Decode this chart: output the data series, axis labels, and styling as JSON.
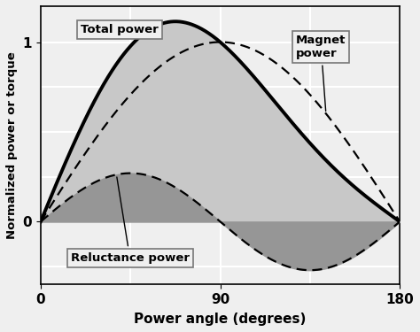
{
  "xlabel": "Power angle (degrees)",
  "ylabel": "Normalized power or torque",
  "xlim": [
    0,
    180
  ],
  "ylim": [
    -0.35,
    1.2
  ],
  "xticks": [
    0,
    90,
    180
  ],
  "yticks": [
    0,
    1
  ],
  "magnet_amplitude": 1.0,
  "reluctance_amplitude": 0.27,
  "light_gray": "#c8c8c8",
  "dark_gray": "#969696",
  "bg_color": "#efefef",
  "grid_color": "#ffffff",
  "extra_vlines": [
    45,
    135
  ],
  "extra_hlines": [
    -0.25,
    0.25,
    0.5,
    0.75
  ]
}
